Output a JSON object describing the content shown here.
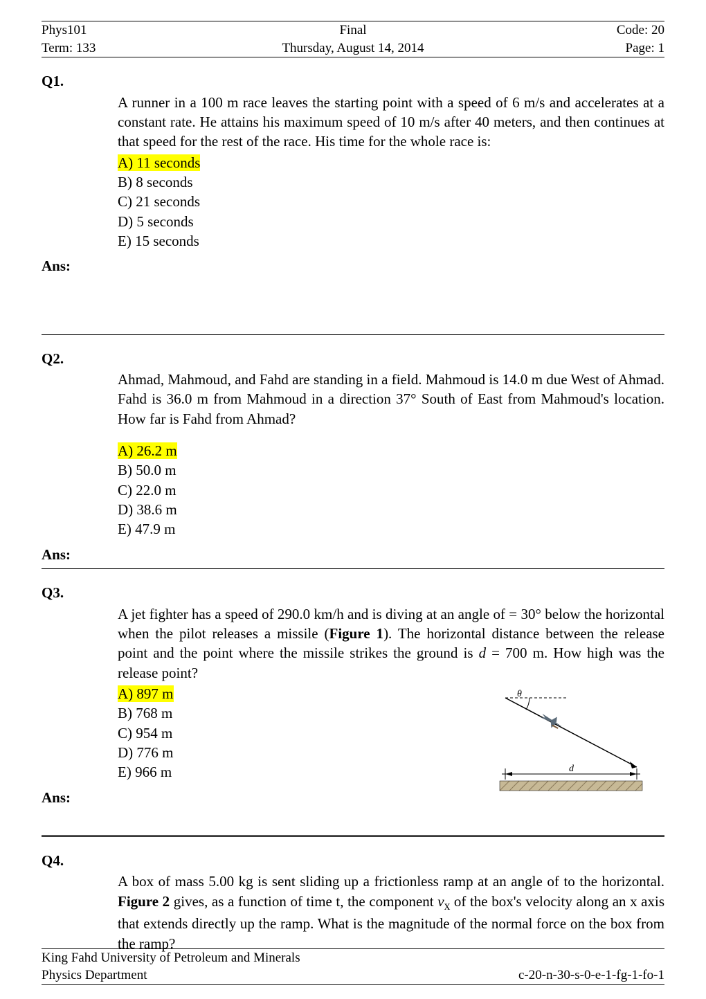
{
  "header": {
    "left1": "Phys101",
    "center1": "Final",
    "right1": "Code: 20",
    "left2": "Term: 133",
    "center2": "Thursday, August 14, 2014",
    "right2": "Page: 1"
  },
  "questions": [
    {
      "label": "Q1.",
      "body": "A runner  in a 100 m race  leaves the starting  point  with a speed of 6 m/s and accelerates  at a constant rate. He attains his maximum speed of 10 m/s after 40 meters, and then continues at that speed for the rest of the race. His time for the whole race is:",
      "options": [
        {
          "text": "A)  11 seconds",
          "highlight": true
        },
        {
          "text": "B)  8 seconds",
          "highlight": false
        },
        {
          "text": "C)  21 seconds",
          "highlight": false
        },
        {
          "text": "D)  5 seconds",
          "highlight": false
        },
        {
          "text": "E)  15 seconds",
          "highlight": false
        }
      ],
      "ans": "Ans:"
    },
    {
      "label": "Q2.",
      "body": "Ahmad, Mahmoud, and Fahd are standing in a field. Mahmoud is 14.0 m due West of Ahmad. Fahd is 36.0 m from Mahmoud in a direction 37° South of East from Mahmoud's location. How far is Fahd from Ahmad?",
      "options": [
        {
          "text": "A)  26.2 m",
          "highlight": true
        },
        {
          "text": "B)  50.0 m",
          "highlight": false
        },
        {
          "text": "C)  22.0 m",
          "highlight": false
        },
        {
          "text": "D)  38.6 m",
          "highlight": false
        },
        {
          "text": "E)  47.9 m",
          "highlight": false
        }
      ],
      "ans": "Ans:"
    },
    {
      "label": "Q3.",
      "body_html": "A jet fighter has a speed of 290.0 km/h and is diving at an angle of  = 30° below the horizontal when the pilot releases a missile (<b>Figure 1</b>). The horizontal distance between the release point and the point where the missile strikes the ground is <i>d</i> = 700 m. How high was the release point?",
      "options": [
        {
          "text": "A)  897 m",
          "highlight": true
        },
        {
          "text": "B)  768 m",
          "highlight": false
        },
        {
          "text": "C)  954 m",
          "highlight": false
        },
        {
          "text": "D)  776 m",
          "highlight": false
        },
        {
          "text": "E)  966 m",
          "highlight": false
        }
      ],
      "ans": "Ans:"
    },
    {
      "label": "Q4.",
      "body_html": "A box of mass 5.00 kg is sent sliding up a frictionless ramp at an angle of  to the horizontal. <b>Figure 2</b> gives, as a function of time t, the component <i>v</i><sub>x</sub> of the box's velocity along an x axis that extends directly up the ramp. What is the magnitude of the normal force on the box from the ramp?"
    }
  ],
  "figure1": {
    "theta_label": "θ",
    "d_label": "d",
    "colors": {
      "plane": "#5a6a78",
      "missile": "#7a5a3a",
      "ground_hatch": "#8a7a5a",
      "line": "#000000",
      "text": "#000000"
    }
  },
  "footer": {
    "left1": "King Fahd University of Petroleum and Minerals",
    "left2": "Physics Department",
    "right2": "c-20-n-30-s-0-e-1-fg-1-fo-1"
  }
}
